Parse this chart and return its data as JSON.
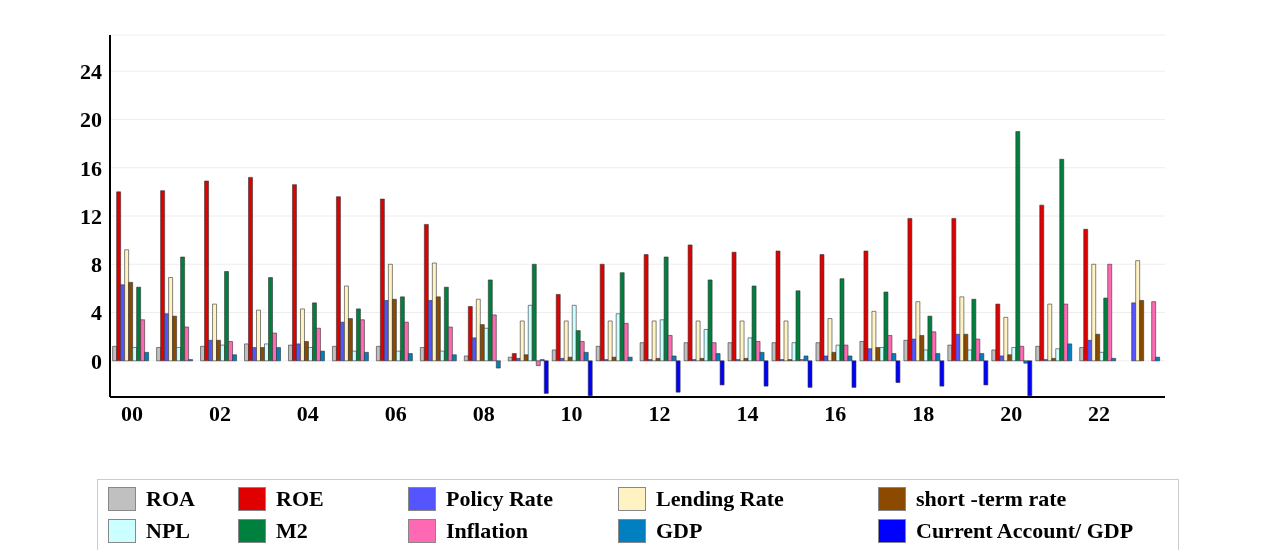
{
  "chart_data": {
    "type": "bar",
    "categories": [
      "00",
      null,
      "02",
      null,
      "04",
      null,
      "06",
      null,
      "08",
      null,
      "10",
      null,
      "12",
      null,
      "14",
      null,
      "16",
      null,
      "18",
      null,
      "20",
      null,
      "22",
      null
    ],
    "ylim": [
      -3,
      27
    ],
    "yticks": [
      0,
      4,
      8,
      12,
      16,
      20,
      24
    ],
    "grid": "y",
    "legend": "bottom",
    "series": [
      {
        "name": "ROA",
        "color": "#c0c0c0",
        "values": [
          1.2,
          1.1,
          1.2,
          1.4,
          1.3,
          1.2,
          1.2,
          1.1,
          0.4,
          0.3,
          0.9,
          1.2,
          1.5,
          1.5,
          1.5,
          1.5,
          1.5,
          1.6,
          1.7,
          1.3,
          0.9,
          1.2,
          1.1,
          null
        ]
      },
      {
        "name": "ROE",
        "color": "#e00000",
        "values": [
          14.0,
          14.1,
          14.9,
          15.2,
          14.6,
          13.6,
          13.4,
          11.3,
          4.5,
          0.6,
          5.5,
          8.0,
          8.8,
          9.6,
          9.0,
          9.1,
          8.8,
          9.1,
          11.8,
          11.8,
          4.7,
          12.9,
          10.9,
          null
        ]
      },
      {
        "name": "Policy Rate",
        "color": "#5555ff",
        "values": [
          6.3,
          3.9,
          1.7,
          1.1,
          1.4,
          3.2,
          5.0,
          5.0,
          1.9,
          0.2,
          0.2,
          0.1,
          0.1,
          0.1,
          0.1,
          0.1,
          0.4,
          1.0,
          1.8,
          2.2,
          0.4,
          0.1,
          1.7,
          4.8
        ]
      },
      {
        "name": "Lending Rate",
        "color": "#fff3c4",
        "values": [
          9.2,
          6.9,
          4.7,
          4.2,
          4.3,
          6.2,
          8.0,
          8.1,
          5.1,
          3.3,
          3.3,
          3.3,
          3.3,
          3.3,
          3.3,
          3.3,
          3.5,
          4.1,
          4.9,
          5.3,
          3.6,
          4.7,
          8.0,
          8.3
        ]
      },
      {
        "name": "short -term rate",
        "color": "#8b4a00",
        "values": [
          6.5,
          3.7,
          1.7,
          1.1,
          1.6,
          3.5,
          5.1,
          5.3,
          3.0,
          0.5,
          0.3,
          0.3,
          0.2,
          0.2,
          0.2,
          0.1,
          0.7,
          1.1,
          2.1,
          2.2,
          0.5,
          0.2,
          2.2,
          5.0
        ]
      },
      {
        "name": "NPL",
        "color": "#ccffff",
        "values": [
          1.1,
          1.1,
          1.3,
          1.4,
          1.1,
          0.8,
          0.8,
          0.8,
          2.7,
          4.6,
          4.6,
          3.9,
          3.4,
          2.6,
          1.9,
          1.5,
          1.3,
          1.1,
          0.9,
          0.9,
          1.1,
          1.0,
          0.7,
          null
        ]
      },
      {
        "name": "M2",
        "color": "#00803f",
        "values": [
          6.1,
          8.6,
          7.4,
          6.9,
          4.8,
          4.3,
          5.3,
          6.1,
          6.7,
          8.0,
          2.5,
          7.3,
          8.6,
          6.7,
          6.2,
          5.8,
          6.8,
          5.7,
          3.7,
          5.1,
          19.0,
          16.7,
          5.2,
          null
        ]
      },
      {
        "name": "Inflation",
        "color": "#ff69b4",
        "values": [
          3.4,
          2.8,
          1.6,
          2.3,
          2.7,
          3.4,
          3.2,
          2.8,
          3.8,
          -0.4,
          1.6,
          3.1,
          2.1,
          1.5,
          1.6,
          0.1,
          1.3,
          2.1,
          2.4,
          1.8,
          1.2,
          4.7,
          8.0,
          4.9
        ]
      },
      {
        "name": "GDP",
        "color": "#0080c0",
        "values": [
          0.7,
          0.1,
          0.5,
          1.1,
          0.8,
          0.7,
          0.6,
          0.5,
          -0.6,
          0.1,
          0.7,
          0.3,
          0.4,
          0.6,
          0.7,
          0.4,
          0.4,
          0.6,
          0.6,
          0.6,
          -0.2,
          1.4,
          0.2,
          0.3
        ]
      },
      {
        "name": "Current Account/ GDP",
        "color": "#0000ff",
        "values": [
          null,
          null,
          null,
          null,
          null,
          null,
          null,
          null,
          null,
          -2.7,
          -2.9,
          null,
          -2.6,
          -2.0,
          -2.1,
          -2.2,
          -2.2,
          -1.8,
          -2.1,
          -2.0,
          -2.9,
          null,
          null,
          null
        ]
      }
    ]
  }
}
